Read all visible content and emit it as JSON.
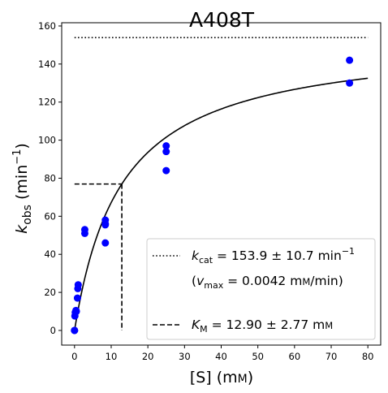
{
  "chart_data": {
    "type": "scatter",
    "title": "A408T",
    "xlabel": {
      "main": "[S] (m",
      "unit_sc": "M",
      "close": ")"
    },
    "ylabel": {
      "k": "k",
      "sub": "obs",
      "rest": " (min",
      "sup": "−1",
      "close": ")"
    },
    "xlim": [
      -3.5,
      83.5
    ],
    "ylim": [
      -7.7,
      161.7
    ],
    "xticks": [
      0,
      10,
      20,
      30,
      40,
      50,
      60,
      70,
      80
    ],
    "yticks": [
      0,
      20,
      40,
      60,
      80,
      100,
      120,
      140,
      160
    ],
    "point_color": "#0000ff",
    "line_color": "#000000",
    "series": [
      {
        "kind": "points",
        "x": [
          0,
          0,
          0.1,
          0.2,
          0.4,
          0.5,
          0.8,
          0.9,
          1.0,
          2.8,
          2.8,
          8.4,
          8.4,
          8.4,
          8.4,
          25,
          25,
          25,
          75,
          75
        ],
        "y": [
          0,
          0,
          7.6,
          9.5,
          10.5,
          10,
          17,
          22,
          24,
          53,
          51,
          58,
          56,
          55.5,
          46,
          97,
          94,
          84,
          142,
          130
        ]
      },
      {
        "kind": "fit",
        "model": "michaelis-menten",
        "vmax": 153.9,
        "km": 12.9,
        "x_range": [
          0,
          80
        ]
      },
      {
        "kind": "kcat-line",
        "y": 153.9,
        "x_range": [
          0,
          80
        ]
      },
      {
        "kind": "km-guide",
        "x": 12.9,
        "y": 76.95
      }
    ],
    "legend": {
      "placement": "lower-right",
      "kcat": {
        "k": "k",
        "sub": "cat",
        "value": " = 153.9 ± 10.7 min",
        "sup": "−1"
      },
      "vmax": {
        "open": "(",
        "v": "v",
        "sub": "max",
        "value": " = 0.0042 m",
        "unit_sc": "M",
        "tail": "/min)"
      },
      "km": {
        "k": "K",
        "sub": "M",
        "value": " = 12.90 ± 2.77 m",
        "unit_sc": "M"
      }
    }
  }
}
